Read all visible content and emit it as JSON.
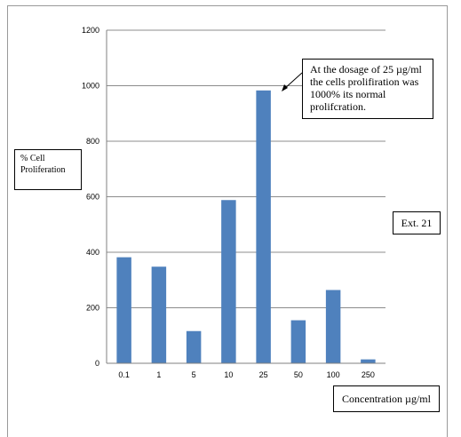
{
  "chart_data": {
    "type": "bar",
    "categories": [
      "0.1",
      "1",
      "5",
      "10",
      "25",
      "50",
      "100",
      "250"
    ],
    "values": [
      382,
      348,
      116,
      588,
      983,
      155,
      264,
      14
    ],
    "ylim": [
      0,
      1200
    ],
    "yticks": [
      0,
      200,
      400,
      600,
      800,
      1000,
      1200
    ],
    "ylabel": "% Cell Proliferation",
    "xlabel": "Concentration µg/ml",
    "annotation": "At the dosage of 25 µg/ml the cells prolifiration was 1000% its normal prolifcration.",
    "tag": "Ext. 21",
    "grid": true,
    "bar_color": "#4f81bd"
  }
}
